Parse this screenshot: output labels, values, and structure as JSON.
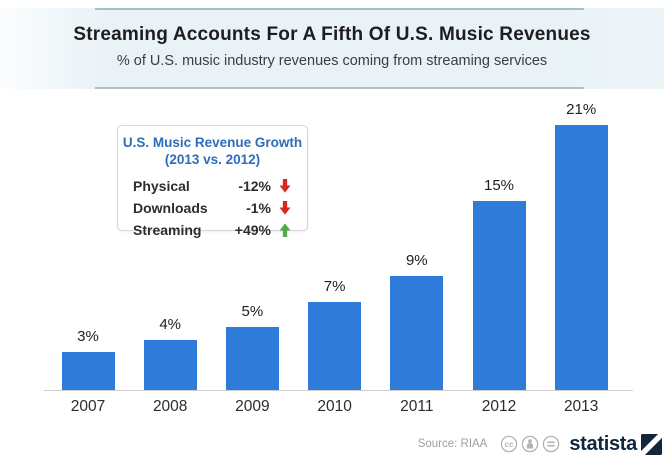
{
  "header": {
    "title": "Streaming Accounts For A Fifth Of U.S. Music Revenues",
    "subtitle": "% of U.S. music industry revenues coming from streaming services"
  },
  "legend": {
    "title_line1": "U.S. Music Revenue Growth",
    "title_line2": "(2013 vs. 2012)",
    "rows": [
      {
        "label": "Physical",
        "value": "-12%",
        "direction": "down"
      },
      {
        "label": "Downloads",
        "value": "-1%",
        "direction": "down"
      },
      {
        "label": "Streaming",
        "value": "+49%",
        "direction": "up"
      }
    ],
    "down_color": "#d6281c",
    "up_color": "#4cae45"
  },
  "chart_data": {
    "type": "bar",
    "categories": [
      "2007",
      "2008",
      "2009",
      "2010",
      "2011",
      "2012",
      "2013"
    ],
    "values": [
      3,
      4,
      5,
      7,
      9,
      15,
      21
    ],
    "labels": [
      "3%",
      "4%",
      "5%",
      "7%",
      "9%",
      "15%",
      "21%"
    ],
    "title": "Streaming Accounts For A Fifth Of U.S. Music Revenues",
    "xlabel": "",
    "ylabel": "% of U.S. music industry revenues from streaming",
    "ylim": [
      0,
      22
    ],
    "grid": false,
    "legend_position": "none",
    "bar_color": "#2e7bd9"
  },
  "footer": {
    "source": "Source: RIAA",
    "license_icons": [
      "cc-icon",
      "attribution-icon",
      "equal-icon"
    ],
    "brand": "statista",
    "brand_color": "#13263f",
    "icon_color": "#b3b3b3"
  }
}
